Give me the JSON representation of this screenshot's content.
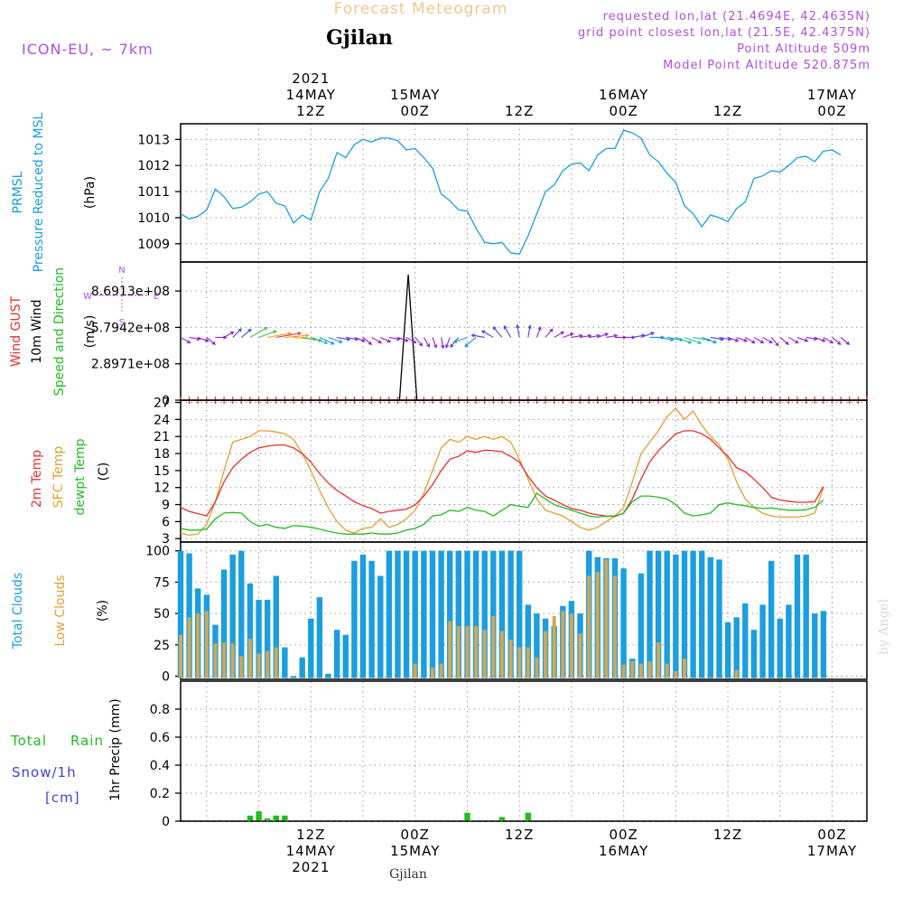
{
  "header": {
    "title": "Forecast Meteogram",
    "location": "Gjilan",
    "model": "ICON-EU, ~ 7km",
    "requested": "requested lon,lat (21.4694E, 42.4635N)",
    "gridpoint": "grid point closest lon,lat (21.5E, 42.4375N)",
    "point_alt": "Point Altitude 509m",
    "model_alt": "Model Point Altitude 520.875m",
    "watermark": "by Angel",
    "footer_location": "Gjilan"
  },
  "time_axis": {
    "top": [
      {
        "t": 15,
        "lines": [
          "2021",
          "14MAY",
          "12Z"
        ]
      },
      {
        "t": 27,
        "lines": [
          "15MAY",
          "00Z"
        ]
      },
      {
        "t": 39,
        "lines": [
          "12Z"
        ]
      },
      {
        "t": 51,
        "lines": [
          "16MAY",
          "00Z"
        ]
      },
      {
        "t": 63,
        "lines": [
          "12Z"
        ]
      },
      {
        "t": 75,
        "lines": [
          "17MAY",
          "00Z"
        ]
      }
    ],
    "bottom": [
      {
        "t": 15,
        "lines": [
          "12Z",
          "14MAY",
          "2021"
        ]
      },
      {
        "t": 27,
        "lines": [
          "00Z",
          "15MAY"
        ]
      },
      {
        "t": 39,
        "lines": [
          "12Z"
        ]
      },
      {
        "t": 51,
        "lines": [
          "00Z",
          "16MAY"
        ]
      },
      {
        "t": 63,
        "lines": [
          "12Z"
        ]
      },
      {
        "t": 75,
        "lines": [
          "00Z",
          "17MAY"
        ]
      }
    ]
  },
  "legend": {
    "p1": [
      {
        "text": "PRMSL",
        "color": "#1a9ee0"
      },
      {
        "text": "Pressure Reduced to MSL",
        "color": "#1a9ee0"
      },
      {
        "text": "(hPa)",
        "color": "#000000"
      }
    ],
    "p2": [
      {
        "text": "Wind GUST",
        "color": "#e83030"
      },
      {
        "text": "10m Wind",
        "color": "#000000"
      },
      {
        "text": "Speed and Direction",
        "color": "#22bb22"
      },
      {
        "text": "(m/s)",
        "color": "#000000"
      }
    ],
    "p3": [
      {
        "text": "2m Temp",
        "color": "#e83030"
      },
      {
        "text": "SFC Temp",
        "color": "#e0a030"
      },
      {
        "text": "dewpt Temp",
        "color": "#22bb22"
      },
      {
        "text": "(C)",
        "color": "#000000"
      }
    ],
    "p4": [
      {
        "text": "Total Clouds",
        "color": "#1a9ee0"
      },
      {
        "text": "Low Clouds",
        "color": "#e0a030"
      },
      {
        "text": "(%)",
        "color": "#000000"
      }
    ],
    "p5_total": "Total",
    "p5_rain": "Rain",
    "p5_snow": "Snow/1h",
    "p5_cm": "[cm]",
    "p5_ylabel": "1hr Precip (mm)"
  },
  "compass": {
    "n": "N",
    "s": "S",
    "w": "W",
    "e": "E"
  },
  "chart_data": [
    {
      "type": "line",
      "title": "PRMSL Pressure Reduced to MSL",
      "ylabel": "(hPa)",
      "xlim": [
        0,
        79
      ],
      "ylim": [
        1008.3,
        1013.6
      ],
      "yticks": [
        1009,
        1010,
        1011,
        1012,
        1013
      ],
      "color": "#1a9ee0",
      "series": [
        {
          "name": "PRMSL",
          "values": [
            1010.15,
            1009.95,
            1010.05,
            1010.3,
            1011.1,
            1010.8,
            1010.35,
            1010.4,
            1010.6,
            1010.9,
            1011.0,
            1010.55,
            1010.45,
            1009.8,
            1010.1,
            1009.9,
            1011.0,
            1011.5,
            1012.5,
            1012.3,
            1012.8,
            1013.0,
            1012.9,
            1013.05,
            1013.05,
            1012.95,
            1012.6,
            1012.65,
            1012.3,
            1011.9,
            1010.9,
            1010.65,
            1010.3,
            1010.25,
            1009.6,
            1009.05,
            1009.0,
            1009.05,
            1008.65,
            1008.6,
            1009.3,
            1010.15,
            1011.0,
            1011.25,
            1011.8,
            1012.05,
            1012.1,
            1011.8,
            1012.4,
            1012.65,
            1012.65,
            1013.35,
            1013.25,
            1013.05,
            1012.4,
            1012.15,
            1011.7,
            1011.35,
            1010.45,
            1010.15,
            1009.65,
            1010.1,
            1010.0,
            1009.85,
            1010.35,
            1010.6,
            1011.5,
            1011.6,
            1011.8,
            1011.75,
            1012.0,
            1012.3,
            1012.35,
            1012.15,
            1012.55,
            1012.6,
            1012.4
          ]
        }
      ]
    },
    {
      "type": "line",
      "title": "Wind GUST / 10m Wind Speed and Direction",
      "ylabel": "(m/s)",
      "xlim": [
        0,
        79
      ],
      "ylim": [
        0,
        1100000000.0
      ],
      "yticks": [
        {
          "v": 0,
          "label": "0"
        },
        {
          "v": 289710000,
          "label": "2.8971e+08"
        },
        {
          "v": 579420000,
          "label": "5.7942e+08"
        },
        {
          "v": 869130000,
          "label": "8.6913e+08"
        }
      ],
      "series": [
        {
          "name": "Wind GUST",
          "color": "#e83030",
          "values": [
            0,
            0,
            0,
            0,
            0,
            0,
            0,
            0,
            0,
            0,
            0,
            0,
            0,
            0,
            0,
            0,
            0,
            0,
            0,
            0,
            0,
            0,
            0,
            0,
            0,
            0,
            0,
            0,
            0,
            0,
            0,
            0,
            0,
            0,
            0,
            0,
            0,
            0,
            0,
            0,
            0,
            0,
            0,
            0,
            0,
            0,
            0,
            0,
            0,
            0,
            0,
            0,
            0,
            0,
            0,
            0,
            0,
            0,
            0,
            0,
            0,
            0,
            0,
            0,
            0,
            0,
            0,
            0,
            0,
            0,
            0,
            0,
            0,
            0,
            0,
            0,
            0,
            0,
            0,
            0
          ]
        },
        {
          "name": "10m Wind",
          "color": "#000000",
          "spike": [
            {
              "t": 25.2,
              "v": 0
            },
            {
              "t": 26.2,
              "v": 1000000000.0
            },
            {
              "t": 27.2,
              "v": 0
            }
          ]
        }
      ],
      "arrows": {
        "level": 500000000,
        "dirs": [
          120,
          100,
          110,
          130,
          90,
          60,
          45,
          50,
          60,
          70,
          80,
          80,
          85,
          95,
          100,
          110,
          115,
          110,
          100,
          100,
          110,
          130,
          120,
          115,
          100,
          110,
          120,
          140,
          150,
          160,
          170,
          200,
          220,
          250,
          230,
          280,
          300,
          320,
          330,
          350,
          10,
          20,
          40,
          60,
          70,
          80,
          80,
          80,
          70,
          80,
          90,
          90,
          80,
          70,
          90,
          100,
          100,
          110,
          110,
          100,
          110,
          100,
          100,
          110,
          110,
          120,
          120,
          120,
          140,
          130,
          120,
          110,
          100,
          110,
          120,
          130,
          130
        ],
        "speeds": [
          1,
          1,
          1,
          1,
          1,
          1,
          1.2,
          1.3,
          2.6,
          2.4,
          3.4,
          3.6,
          3.4,
          3.2,
          2.6,
          2.2,
          1.9,
          1.7,
          1.4,
          1.3,
          1,
          1,
          1,
          1,
          1,
          1,
          1,
          1,
          1,
          1,
          1,
          1,
          1.3,
          1.6,
          1.6,
          1.4,
          1.4,
          1.5,
          1.4,
          1.3,
          1.2,
          1,
          1,
          1,
          1,
          1,
          1,
          1,
          1,
          1,
          1,
          1,
          1.3,
          1.5,
          1.6,
          1.8,
          1.9,
          2.0,
          2.2,
          2.2,
          1.8,
          1.4,
          1.2,
          1,
          1,
          1,
          1,
          1,
          1,
          1,
          1,
          1,
          1,
          1,
          1,
          1,
          1
        ]
      }
    },
    {
      "type": "line",
      "title": "2m Temp / SFC Temp / dewpt Temp",
      "ylabel": "(C)",
      "xlim": [
        0,
        79
      ],
      "ylim": [
        2.4,
        27.4
      ],
      "yticks": [
        3,
        6,
        9,
        12,
        15,
        18,
        21,
        24,
        27
      ],
      "series": [
        {
          "name": "2m Temp",
          "color": "#e83030",
          "values": [
            8.5,
            7.8,
            7.4,
            7.0,
            9.5,
            13.0,
            15.5,
            17.0,
            18.2,
            19.0,
            19.3,
            19.5,
            19.5,
            19.0,
            18.0,
            16.5,
            14.5,
            12.8,
            11.5,
            10.5,
            9.5,
            8.8,
            8.3,
            7.5,
            7.8,
            8.0,
            8.2,
            9.0,
            10.5,
            12.5,
            15.0,
            17.0,
            17.5,
            18.5,
            18.2,
            18.6,
            18.5,
            18.3,
            17.5,
            16.5,
            14.0,
            12.0,
            10.5,
            9.8,
            9.0,
            8.3,
            8.0,
            7.5,
            7.2,
            7.0,
            6.9,
            7.5,
            10.0,
            13.5,
            16.5,
            18.5,
            20.0,
            21.5,
            22.0,
            22.0,
            21.5,
            20.5,
            19.0,
            17.5,
            15.5,
            14.8,
            13.5,
            12.0,
            10.3,
            9.8,
            9.6,
            9.4,
            9.4,
            9.5,
            12.2
          ]
        },
        {
          "name": "SFC Temp",
          "color": "#e0a030",
          "values": [
            4.0,
            3.6,
            3.8,
            5.5,
            9.5,
            15.0,
            20.0,
            20.5,
            21.0,
            22.0,
            22.0,
            21.8,
            21.5,
            20.5,
            18.0,
            15.0,
            11.5,
            8.5,
            6.0,
            4.5,
            4.0,
            4.8,
            5.0,
            6.5,
            5.0,
            5.5,
            6.5,
            8.0,
            11.0,
            15.0,
            19.0,
            20.5,
            20.0,
            21.0,
            20.5,
            21.0,
            20.5,
            21.0,
            20.0,
            17.0,
            13.5,
            10.0,
            8.0,
            7.5,
            7.0,
            6.0,
            5.0,
            4.5,
            5.0,
            6.0,
            7.0,
            8.5,
            13.0,
            18.0,
            20.0,
            22.0,
            24.5,
            26.0,
            24.0,
            25.5,
            23.0,
            21.0,
            19.5,
            17.0,
            13.0,
            10.0,
            8.5,
            7.5,
            7.0,
            6.8,
            6.8,
            6.8,
            7.0,
            7.5,
            12.0
          ]
        },
        {
          "name": "dewpt Temp",
          "color": "#22bb22",
          "values": [
            4.8,
            4.5,
            4.5,
            4.7,
            6.5,
            7.5,
            7.6,
            7.5,
            6.0,
            5.2,
            5.5,
            5.0,
            4.8,
            5.3,
            5.2,
            5.0,
            4.7,
            4.3,
            4.0,
            3.8,
            3.8,
            3.8,
            4.0,
            3.8,
            3.8,
            4.0,
            4.5,
            4.8,
            5.5,
            7.0,
            7.2,
            8.0,
            7.8,
            8.5,
            8.0,
            7.8,
            7.0,
            8.0,
            9.0,
            8.7,
            8.5,
            11.0,
            10.0,
            9.0,
            8.5,
            8.0,
            7.5,
            7.0,
            6.8,
            7.0,
            7.0,
            7.5,
            9.5,
            10.5,
            10.5,
            10.3,
            10.0,
            9.0,
            7.5,
            7.0,
            7.2,
            7.5,
            9.0,
            9.3,
            9.0,
            8.8,
            8.5,
            8.3,
            8.4,
            8.2,
            8.0,
            8.0,
            8.1,
            8.5,
            9.8
          ]
        }
      ]
    },
    {
      "type": "bar",
      "title": "Total Clouds / Low Clouds",
      "ylabel": "(%)",
      "xlim": [
        0,
        79
      ],
      "ylim": [
        -2.5,
        107
      ],
      "yticks": [
        0,
        25,
        50,
        75,
        100
      ],
      "series": [
        {
          "name": "Total Clouds",
          "color": "#1a9ee0",
          "values": [
            100,
            98,
            70,
            65,
            41,
            85,
            97,
            100,
            74,
            61,
            61,
            80,
            23,
            0,
            15,
            46,
            63,
            2,
            37,
            33,
            92,
            97,
            92,
            80,
            100,
            100,
            100,
            100,
            100,
            100,
            100,
            100,
            100,
            100,
            100,
            100,
            100,
            100,
            100,
            100,
            57,
            50,
            46,
            40,
            56,
            60,
            50,
            100,
            95,
            94,
            94,
            86,
            14,
            82,
            100,
            100,
            100,
            97,
            100,
            100,
            100,
            95,
            93,
            43,
            47,
            58,
            37,
            57,
            92,
            46,
            57,
            97,
            97,
            50,
            52
          ]
        },
        {
          "name": "Low Clouds",
          "color": "#cfa85a",
          "values": [
            33,
            47,
            50,
            52,
            26,
            27,
            26,
            16,
            30,
            18,
            20,
            23,
            0,
            0,
            0,
            0,
            0,
            0,
            0,
            0,
            0,
            0,
            0,
            0,
            0,
            0,
            0,
            10,
            0,
            7,
            10,
            44,
            40,
            40,
            40,
            37,
            48,
            36,
            29,
            23,
            23,
            15,
            36,
            48,
            52,
            50,
            34,
            80,
            83,
            93,
            80,
            9,
            12,
            10,
            12,
            27,
            10,
            4,
            14,
            0,
            0,
            0,
            0,
            0,
            5,
            0,
            0,
            0,
            0,
            0,
            0,
            0,
            0,
            0,
            0
          ]
        }
      ]
    },
    {
      "type": "bar",
      "title": "1hr Precip",
      "ylabel": "1hr Precip (mm)",
      "xlim": [
        0,
        79
      ],
      "ylim": [
        0,
        1.0
      ],
      "yticks": [
        0,
        0.2,
        0.4,
        0.6,
        0.8
      ],
      "series": [
        {
          "name": "Total Rain",
          "color": "#22bb22",
          "points": [
            {
              "t": 8,
              "v": 0.04
            },
            {
              "t": 9,
              "v": 0.07
            },
            {
              "t": 10,
              "v": 0.02
            },
            {
              "t": 11,
              "v": 0.04
            },
            {
              "t": 12,
              "v": 0.04
            },
            {
              "t": 33,
              "v": 0.06
            },
            {
              "t": 37,
              "v": 0.03
            },
            {
              "t": 40,
              "v": 0.06
            }
          ]
        }
      ]
    }
  ]
}
